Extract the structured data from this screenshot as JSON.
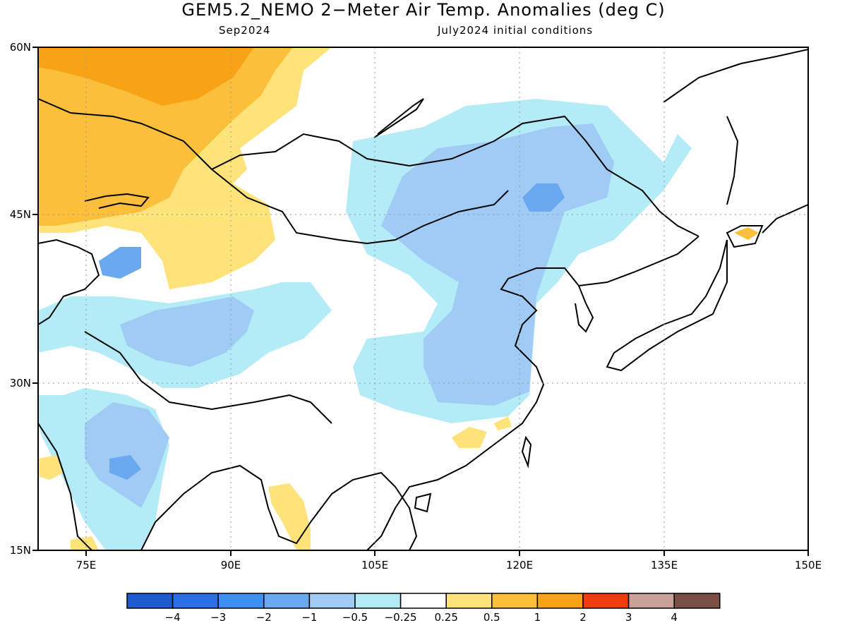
{
  "title": "GEM5.2_NEMO 2−Meter Air Temp. Anomalies (deg C)",
  "subtitle_left": "Sep2024",
  "subtitle_right": "July2024 initial conditions",
  "map": {
    "lon_range": [
      70,
      150
    ],
    "lat_range": [
      15,
      60
    ],
    "lat_labels": [
      "60N",
      "45N",
      "30N",
      "15N"
    ],
    "lon_labels": [
      "75E",
      "90E",
      "105E",
      "120E",
      "135E",
      "150E"
    ],
    "grid": true,
    "colors": {
      "cool_strong": "#6aa8f0",
      "cool": "#9fcbf5",
      "cool_light": "#b3ecf7",
      "warm_light": "#fde37a",
      "warm": "#fbbf3c",
      "warm_strong": "#f8a215",
      "coast": "#000000"
    }
  },
  "colorbar": {
    "colors": [
      "#1f5bd0",
      "#2a6fe6",
      "#3f8ff0",
      "#6aa8f0",
      "#9fcbf5",
      "#b3ecf7",
      "#ffffff",
      "#fde37a",
      "#fbbf3c",
      "#f8a215",
      "#f23a10",
      "#c8a298",
      "#7a5046"
    ],
    "labels": [
      "−4",
      "−3",
      "−2",
      "−1",
      "−0.5",
      "−0.25",
      "0.25",
      "0.5",
      "1",
      "2",
      "3",
      "4"
    ]
  }
}
